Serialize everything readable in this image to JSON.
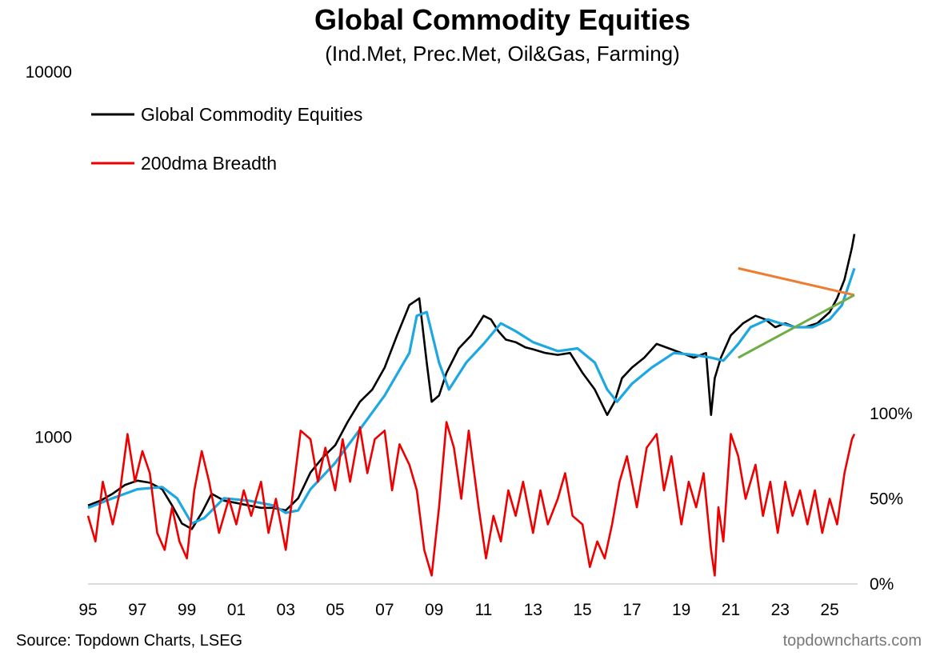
{
  "header": {
    "title": "Global Commodity Equities",
    "subtitle": "(Ind.Met, Prec.Met, Oil&Gas, Farming)"
  },
  "footer": {
    "source": "Source: Topdown Charts, LSEG",
    "watermark": "topdowncharts.com"
  },
  "colors": {
    "price": "#000000",
    "ma": "#1ea7e1",
    "breadth": "#ee0000",
    "resistance": "#ed7d31",
    "support": "#70ad47"
  },
  "chart_data": {
    "type": "line",
    "title": "Global Commodity Equities",
    "subtitle": "(Ind.Met, Prec.Met, Oil&Gas, Farming)",
    "x_ticks": [
      "95",
      "97",
      "99",
      "01",
      "03",
      "05",
      "07",
      "09",
      "11",
      "13",
      "15",
      "17",
      "19",
      "21",
      "23",
      "25"
    ],
    "x_range": [
      1995,
      2026
    ],
    "legend": [
      {
        "name": "Global Commodity Equities",
        "color": "#000000"
      },
      {
        "name": "200dma Breadth",
        "color": "#ee0000"
      }
    ],
    "legend_position": "top-left",
    "panels": [
      {
        "name": "price",
        "scale": "log",
        "ylim": [
          400,
          10000
        ],
        "y_tick_labels": [
          "10000",
          "1000"
        ],
        "y_tick_values": [
          10000,
          1000
        ],
        "series": [
          {
            "name": "Global Commodity Equities",
            "color": "#000000",
            "x": [
              1995.0,
              1995.5,
              1996.0,
              1996.5,
              1997.0,
              1997.5,
              1998.0,
              1998.4,
              1998.8,
              1999.2,
              1999.6,
              2000.0,
              2000.5,
              2001.0,
              2001.5,
              2002.0,
              2002.5,
              2003.0,
              2003.5,
              2004.0,
              2004.5,
              2005.0,
              2005.5,
              2006.0,
              2006.5,
              2007.0,
              2007.5,
              2008.0,
              2008.4,
              2008.7,
              2008.9,
              2009.2,
              2009.5,
              2010.0,
              2010.5,
              2011.0,
              2011.3,
              2011.6,
              2011.9,
              2012.3,
              2012.7,
              2013.0,
              2013.5,
              2014.0,
              2014.5,
              2015.0,
              2015.5,
              2016.0,
              2016.3,
              2016.6,
              2017.0,
              2017.5,
              2018.0,
              2018.5,
              2019.0,
              2019.5,
              2020.0,
              2020.2,
              2020.35,
              2020.6,
              2021.0,
              2021.5,
              2022.0,
              2022.4,
              2022.8,
              2023.2,
              2023.6,
              2024.0,
              2024.5,
              2025.0,
              2025.3,
              2025.6,
              2025.9,
              2026.0
            ],
            "y": [
              650,
              670,
              700,
              740,
              760,
              750,
              720,
              650,
              580,
              560,
              620,
              700,
              670,
              660,
              650,
              640,
              640,
              630,
              680,
              800,
              880,
              950,
              1100,
              1250,
              1350,
              1550,
              1900,
              2300,
              2400,
              1600,
              1250,
              1300,
              1500,
              1750,
              1900,
              2150,
              2100,
              1950,
              1850,
              1820,
              1760,
              1740,
              1700,
              1680,
              1700,
              1500,
              1350,
              1150,
              1250,
              1450,
              1550,
              1650,
              1800,
              1750,
              1700,
              1650,
              1700,
              1150,
              1450,
              1650,
              1900,
              2050,
              2150,
              2100,
              2000,
              2050,
              2000,
              2000,
              2050,
              2200,
              2400,
              2700,
              3300,
              3600
            ]
          },
          {
            "name": "200dma",
            "color": "#1ea7e1",
            "x": [
              1995.0,
              1996.0,
              1997.0,
              1998.0,
              1998.6,
              1999.2,
              1999.7,
              2000.5,
              2001.5,
              2002.5,
              2003.0,
              2003.5,
              2004.0,
              2005.0,
              2006.0,
              2007.0,
              2008.0,
              2008.3,
              2008.7,
              2009.2,
              2009.6,
              2010.3,
              2011.0,
              2011.7,
              2012.3,
              2013.0,
              2014.0,
              2014.8,
              2015.5,
              2016.0,
              2016.4,
              2017.0,
              2017.8,
              2018.7,
              2019.5,
              2020.2,
              2020.7,
              2021.3,
              2021.8,
              2022.5,
              2023.0,
              2023.6,
              2024.3,
              2025.0,
              2025.5,
              2026.0
            ],
            "y": [
              640,
              680,
              720,
              730,
              680,
              580,
              600,
              680,
              670,
              650,
              620,
              630,
              720,
              850,
              1050,
              1300,
              1700,
              2150,
              2200,
              1600,
              1350,
              1600,
              1800,
              2050,
              1950,
              1820,
              1720,
              1750,
              1600,
              1350,
              1250,
              1400,
              1550,
              1700,
              1680,
              1650,
              1620,
              1800,
              2000,
              2100,
              2050,
              2000,
              2000,
              2100,
              2300,
              2900
            ]
          }
        ],
        "annotations": [
          {
            "name": "resistance-trendline",
            "color": "#ed7d31",
            "x": [
              2021.3,
              2026.0
            ],
            "y": [
              2900,
              2450
            ]
          },
          {
            "name": "support-trendline",
            "color": "#70ad47",
            "x": [
              2021.3,
              2026.0
            ],
            "y": [
              1650,
              2450
            ]
          }
        ]
      },
      {
        "name": "breadth",
        "scale": "linear",
        "ylim": [
          0,
          100
        ],
        "y_tick_labels": [
          "100%",
          "50%",
          "0%"
        ],
        "y_tick_values": [
          100,
          50,
          0
        ],
        "series": [
          {
            "name": "200dma Breadth",
            "color": "#ee0000",
            "x": [
              1995.0,
              1995.3,
              1995.6,
              1996.0,
              1996.3,
              1996.6,
              1996.9,
              1997.2,
              1997.5,
              1997.8,
              1998.1,
              1998.4,
              1998.7,
              1999.0,
              1999.3,
              1999.6,
              1999.9,
              2000.3,
              2000.7,
              2001.0,
              2001.3,
              2001.6,
              2002.0,
              2002.3,
              2002.6,
              2003.0,
              2003.3,
              2003.6,
              2004.0,
              2004.3,
              2004.6,
              2005.0,
              2005.3,
              2005.6,
              2006.0,
              2006.3,
              2006.6,
              2007.0,
              2007.3,
              2007.6,
              2008.0,
              2008.3,
              2008.6,
              2008.9,
              2009.2,
              2009.5,
              2009.8,
              2010.1,
              2010.4,
              2010.8,
              2011.1,
              2011.4,
              2011.7,
              2012.0,
              2012.3,
              2012.6,
              2013.0,
              2013.3,
              2013.6,
              2014.0,
              2014.3,
              2014.6,
              2015.0,
              2015.3,
              2015.6,
              2015.9,
              2016.2,
              2016.5,
              2016.8,
              2017.2,
              2017.6,
              2018.0,
              2018.3,
              2018.6,
              2019.0,
              2019.3,
              2019.6,
              2019.9,
              2020.2,
              2020.35,
              2020.5,
              2020.7,
              2021.0,
              2021.3,
              2021.6,
              2022.0,
              2022.3,
              2022.6,
              2022.9,
              2023.2,
              2023.5,
              2023.8,
              2024.1,
              2024.4,
              2024.7,
              2025.0,
              2025.3,
              2025.6,
              2025.9,
              2026.0
            ],
            "y": [
              40,
              25,
              60,
              35,
              55,
              88,
              60,
              78,
              65,
              30,
              20,
              45,
              25,
              15,
              55,
              78,
              60,
              30,
              50,
              35,
              55,
              40,
              60,
              30,
              50,
              20,
              55,
              90,
              85,
              60,
              80,
              55,
              85,
              60,
              92,
              65,
              85,
              90,
              55,
              82,
              70,
              55,
              20,
              5,
              45,
              95,
              80,
              50,
              90,
              45,
              15,
              40,
              25,
              55,
              40,
              60,
              30,
              55,
              35,
              50,
              65,
              40,
              35,
              10,
              25,
              15,
              35,
              60,
              75,
              45,
              80,
              88,
              55,
              75,
              35,
              60,
              45,
              65,
              20,
              5,
              45,
              25,
              88,
              75,
              50,
              70,
              40,
              60,
              30,
              60,
              40,
              55,
              35,
              55,
              30,
              50,
              35,
              65,
              85,
              88
            ]
          }
        ]
      }
    ]
  }
}
